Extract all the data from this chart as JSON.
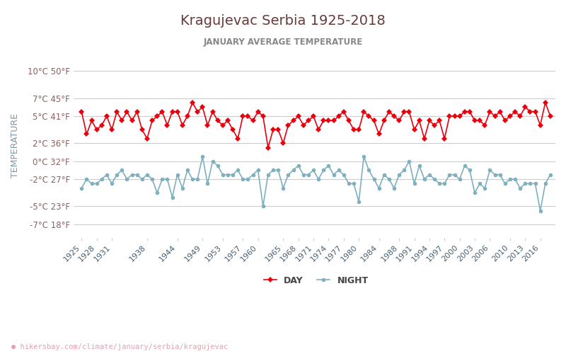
{
  "title": "Kragujevac Serbia 1925-2018",
  "subtitle": "JANUARY AVERAGE TEMPERATURE",
  "xlabel_url": "hikersbay.com/climate/january/serbia/kragujevac",
  "ylabel": "TEMPERATURE",
  "legend_night": "NIGHT",
  "legend_day": "DAY",
  "years": [
    1925,
    1926,
    1927,
    1928,
    1929,
    1930,
    1931,
    1932,
    1933,
    1934,
    1935,
    1936,
    1937,
    1938,
    1939,
    1940,
    1941,
    1942,
    1943,
    1944,
    1945,
    1946,
    1947,
    1948,
    1949,
    1950,
    1951,
    1952,
    1953,
    1954,
    1955,
    1956,
    1957,
    1958,
    1959,
    1960,
    1961,
    1962,
    1963,
    1964,
    1965,
    1966,
    1967,
    1968,
    1969,
    1970,
    1971,
    1972,
    1973,
    1974,
    1975,
    1976,
    1977,
    1978,
    1979,
    1980,
    1981,
    1982,
    1983,
    1984,
    1985,
    1986,
    1987,
    1988,
    1989,
    1990,
    1991,
    1992,
    1993,
    1994,
    1995,
    1996,
    1997,
    1998,
    1999,
    2000,
    2001,
    2002,
    2003,
    2004,
    2005,
    2006,
    2007,
    2008,
    2009,
    2010,
    2011,
    2012,
    2013,
    2014,
    2015,
    2016,
    2017,
    2018
  ],
  "day_temps": [
    5.5,
    3.0,
    4.5,
    3.5,
    4.0,
    5.0,
    3.5,
    5.5,
    4.5,
    5.5,
    4.5,
    5.5,
    3.5,
    2.5,
    4.5,
    5.0,
    5.5,
    4.0,
    5.5,
    5.5,
    4.0,
    5.0,
    6.5,
    5.5,
    6.0,
    4.0,
    5.5,
    4.5,
    4.0,
    4.5,
    3.5,
    2.5,
    5.0,
    5.0,
    4.5,
    5.5,
    5.0,
    1.5,
    3.5,
    3.5,
    2.0,
    4.0,
    4.5,
    5.0,
    4.0,
    4.5,
    5.0,
    3.5,
    4.5,
    4.5,
    4.5,
    5.0,
    5.5,
    4.5,
    3.5,
    3.5,
    5.5,
    5.0,
    4.5,
    3.0,
    4.5,
    5.5,
    5.0,
    4.5,
    5.5,
    5.5,
    3.5,
    4.5,
    2.5,
    4.5,
    4.0,
    4.5,
    2.5,
    5.0,
    5.0,
    5.0,
    5.5,
    5.5,
    4.5,
    4.5,
    4.0,
    5.5,
    5.0,
    5.5,
    4.5,
    5.0,
    5.5,
    5.0,
    6.0,
    5.5,
    5.5,
    4.0,
    6.5,
    5.0
  ],
  "night_temps": [
    -3.0,
    -2.0,
    -2.5,
    -2.5,
    -2.0,
    -1.5,
    -2.5,
    -1.5,
    -1.0,
    -2.0,
    -1.5,
    -1.5,
    -2.0,
    -1.5,
    -2.0,
    -3.5,
    -2.0,
    -2.0,
    -4.0,
    -1.5,
    -3.0,
    -1.0,
    -2.0,
    -2.0,
    0.5,
    -2.5,
    0.0,
    -0.5,
    -1.5,
    -1.5,
    -1.5,
    -1.0,
    -2.0,
    -2.0,
    -1.5,
    -1.0,
    -5.0,
    -1.5,
    -1.0,
    -1.0,
    -3.0,
    -1.5,
    -1.0,
    -0.5,
    -1.5,
    -1.5,
    -1.0,
    -2.0,
    -1.0,
    -0.5,
    -1.5,
    -1.0,
    -1.5,
    -2.5,
    -2.5,
    -4.5,
    0.5,
    -1.0,
    -2.0,
    -3.0,
    -1.5,
    -2.0,
    -3.0,
    -1.5,
    -1.0,
    0.0,
    -2.5,
    -0.5,
    -2.0,
    -1.5,
    -2.0,
    -2.5,
    -2.5,
    -1.5,
    -1.5,
    -2.0,
    -0.5,
    -1.0,
    -3.5,
    -2.5,
    -3.0,
    -1.0,
    -1.5,
    -1.5,
    -2.5,
    -2.0,
    -2.0,
    -3.0,
    -2.5,
    -2.5,
    -2.5,
    -5.5,
    -2.5,
    -1.5
  ],
  "day_color": "#e8000d",
  "night_color": "#7eb0bf",
  "title_color": "#6b3a3a",
  "subtitle_color": "#888888",
  "ylabel_color": "#7a9aaa",
  "tick_color": "#8b6060",
  "grid_color": "#cccccc",
  "background_color": "#ffffff",
  "yticks_c": [
    10,
    7,
    5,
    2,
    0,
    -2,
    -5,
    -7
  ],
  "yticks_f": [
    50,
    45,
    41,
    36,
    32,
    27,
    23,
    18
  ],
  "xtick_years": [
    1925,
    1928,
    1931,
    1938,
    1944,
    1949,
    1953,
    1957,
    1960,
    1965,
    1968,
    1971,
    1974,
    1977,
    1980,
    1984,
    1988,
    1991,
    1994,
    1997,
    2000,
    2003,
    2006,
    2010,
    2013,
    2016
  ],
  "ylim": [
    -8.5,
    12.0
  ],
  "xlim": [
    1924,
    2019
  ]
}
